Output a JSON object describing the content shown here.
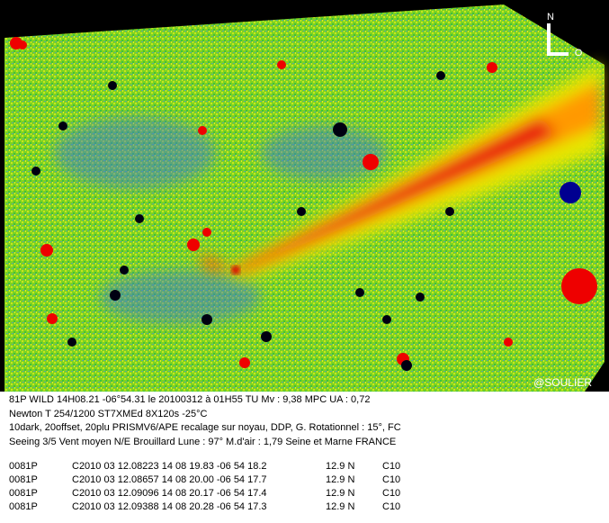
{
  "image": {
    "labels": {
      "north": "N",
      "west": "O",
      "credit": "@SOULIER"
    }
  },
  "caption": {
    "lines": [
      "81P WILD 14H08.21 -06°54.31 le 20100312 à 01H55 TU Mv : 9,38 MPC UA : 0,72",
      "Newton T 254/1200 ST7XMEd 8X120s -25°C",
      "10dark, 20offset, 20plu PRISMV6/APE recalage sur noyau, DDP, G. Rotationnel : 15°, FC",
      "Seeing 3/5 Vent moyen N/E Brouillard Lune : 97° M.d'air : 1,79 Seine et Marne FRANCE"
    ]
  },
  "table": {
    "rows": [
      [
        "0081P",
        "C2010 03 12.08223 14 08 19.83 -06 54 18.2",
        "12.9 N",
        "C10"
      ],
      [
        "0081P",
        "C2010 03 12.08657 14 08 20.00 -06 54 17.7",
        "12.9 N",
        "C10"
      ],
      [
        "0081P",
        "C2010 03 12.09096 14 08 20.17 -06 54 17.4",
        "12.9 N",
        "C10"
      ],
      [
        "0081P",
        "C2010 03 12.09388 14 08 20.28 -06 54 17.3",
        "12.9 N",
        "C10"
      ]
    ]
  }
}
